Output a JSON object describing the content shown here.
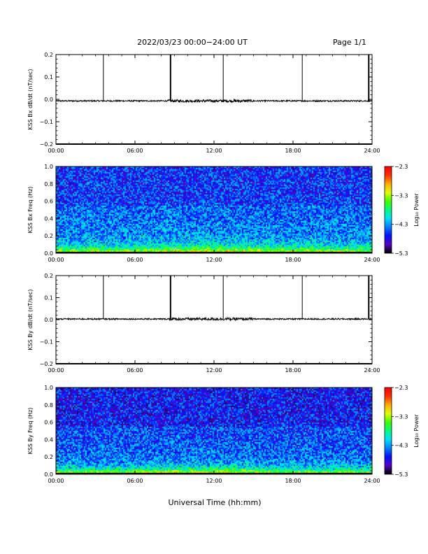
{
  "header": {
    "title": "2022/03/23  00:00−24:00 UT",
    "page": "Page 1/1"
  },
  "xlabel": "Universal Time (hh:mm)",
  "x_ticks": [
    "00:00",
    "06:00",
    "12:00",
    "18:00",
    "24:00"
  ],
  "colorbar": {
    "label": "Log₁₀ Power",
    "ticks": [
      "−2.3",
      "−3.3",
      "−4.3",
      "−5.3"
    ],
    "range": [
      -5.3,
      -2.3
    ],
    "colors": [
      "#000000",
      "#5a00c8",
      "#0010ff",
      "#0080ff",
      "#00e0ff",
      "#00ff80",
      "#40ff00",
      "#e0ff00",
      "#ffb000",
      "#ff3000",
      "#ff0000"
    ]
  },
  "chart_data": [
    {
      "type": "line",
      "ylabel": "KSS Bx dB/dt (nT/sec)",
      "ylim": [
        -0.2,
        0.2
      ],
      "y_ticks": [
        "0.2",
        "0.1",
        "0.0",
        "−0.1",
        "−0.2"
      ],
      "xlim_hours": [
        0,
        24
      ],
      "baseline": -0.007,
      "noise_amplitude": 0.003,
      "spikes": [
        {
          "t_hours": 3.6,
          "value": 0.2
        },
        {
          "t_hours": 8.7,
          "value": 0.2
        },
        {
          "t_hours": 12.7,
          "value": 0.2
        },
        {
          "t_hours": 18.7,
          "value": 0.2
        },
        {
          "t_hours": 23.75,
          "value": 0.2
        }
      ]
    },
    {
      "type": "heatmap",
      "ylabel": "KSS Bx Freq (Hz)",
      "ylim": [
        0.0,
        1.0
      ],
      "y_ticks": [
        "1.0",
        "0.8",
        "0.6",
        "0.4",
        "0.2",
        "0.0"
      ],
      "xlim_hours": [
        0,
        24
      ],
      "z_units": "Log10 Power",
      "z_range": [
        -5.3,
        -2.3
      ],
      "background_level": -4.5,
      "low_freq_enhancement": -3.2
    },
    {
      "type": "line",
      "ylabel": "KSS By dB/dt (nT/sec)",
      "ylim": [
        -0.2,
        0.2
      ],
      "y_ticks": [
        "0.2",
        "0.1",
        "0.0",
        "−0.1",
        "−0.2"
      ],
      "xlim_hours": [
        0,
        24
      ],
      "baseline": 0.003,
      "noise_amplitude": 0.003,
      "spikes": [
        {
          "t_hours": 3.6,
          "value": 0.2
        },
        {
          "t_hours": 8.7,
          "value": 0.2
        },
        {
          "t_hours": 12.7,
          "value": 0.2
        },
        {
          "t_hours": 18.7,
          "value": 0.2
        },
        {
          "t_hours": 23.75,
          "value": 0.2
        }
      ]
    },
    {
      "type": "heatmap",
      "ylabel": "KSS By Freq (Hz)",
      "ylim": [
        0.0,
        1.0
      ],
      "y_ticks": [
        "1.0",
        "0.8",
        "0.6",
        "0.4",
        "0.2",
        "0.0"
      ],
      "xlim_hours": [
        0,
        24
      ],
      "z_units": "Log10 Power",
      "z_range": [
        -5.3,
        -2.3
      ],
      "background_level": -4.6,
      "low_freq_enhancement": -3.3
    }
  ]
}
